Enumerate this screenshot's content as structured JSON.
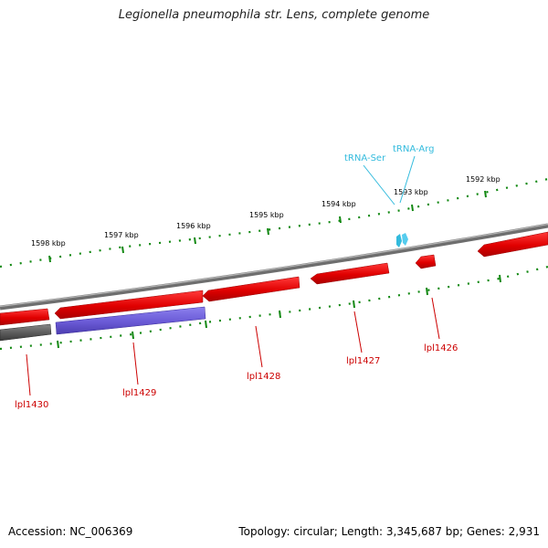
{
  "title": "Legionella pneumophila str. Lens, complete genome",
  "footer": {
    "accession": "Accession: NC_006369",
    "summary": "Topology: circular; Length: 3,345,687 bp; Genes: 2,931"
  },
  "ticks": [
    {
      "label": "1598 kbp"
    },
    {
      "label": "1597 kbp"
    },
    {
      "label": "1596 kbp"
    },
    {
      "label": "1595 kbp"
    },
    {
      "label": "1594 kbp"
    },
    {
      "label": "1593 kbp"
    },
    {
      "label": "1592 kbp"
    }
  ],
  "genes": [
    {
      "label": "lpl1430",
      "color": "#555555"
    },
    {
      "label": "lpl1429",
      "color": "#6655cc"
    },
    {
      "label": "lpl1428",
      "color": "#dd0000"
    },
    {
      "label": "lpl1427",
      "color": "#dd0000"
    },
    {
      "label": "lpl1426",
      "color": "#dd0000"
    }
  ],
  "trnas": [
    {
      "label": "tRNA-Ser",
      "color": "#33bbdd"
    },
    {
      "label": "tRNA-Arg",
      "color": "#33bbdd"
    }
  ],
  "colors": {
    "backbone": "#888888",
    "forward_gene": "#dd0000",
    "tick": "#118811"
  }
}
